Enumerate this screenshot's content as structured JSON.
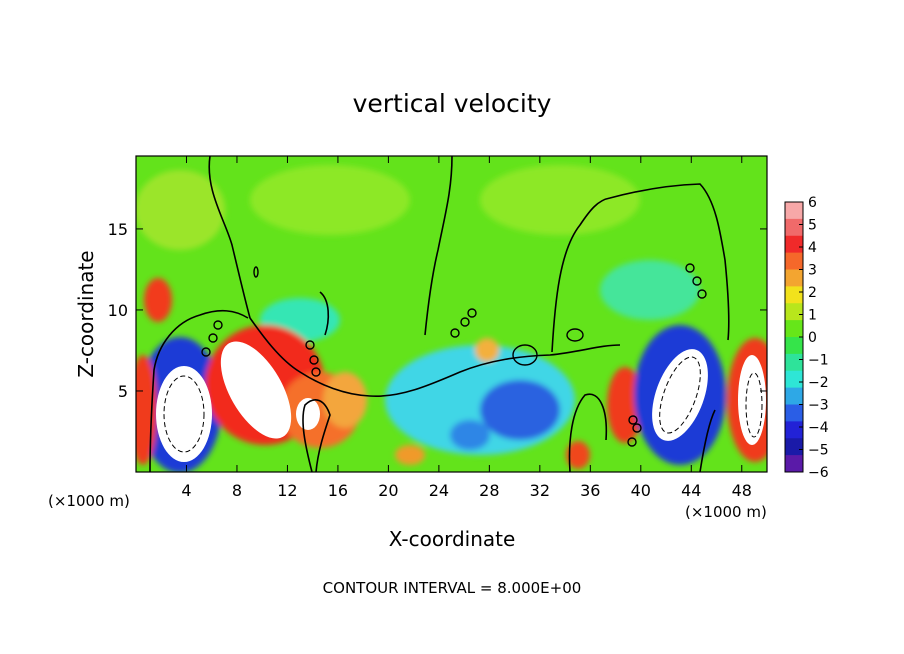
{
  "chart_data": {
    "type": "heatmap",
    "title": "vertical velocity",
    "xlabel": "X-coordinate",
    "ylabel": "Z-coordinate",
    "x_unit_note_left": "(×1000 m)",
    "x_unit_note_right": "(×1000 m)",
    "xlim": [
      0,
      50
    ],
    "ylim": [
      0,
      19.5
    ],
    "x_ticks": [
      4,
      8,
      12,
      16,
      20,
      24,
      28,
      32,
      36,
      40,
      44,
      48
    ],
    "y_ticks": [
      5,
      10,
      15
    ],
    "footer": "CONTOUR INTERVAL = 8.000E+00",
    "colorbar": {
      "ticks": [
        "6",
        "5",
        "4",
        "3",
        "2",
        "1",
        "0",
        "−1",
        "−2",
        "−3",
        "−4",
        "−5",
        "−6"
      ],
      "range": [
        -6,
        6
      ]
    },
    "colors": {
      "background_field": "#66e619",
      "white_core": "#ffffff"
    }
  }
}
